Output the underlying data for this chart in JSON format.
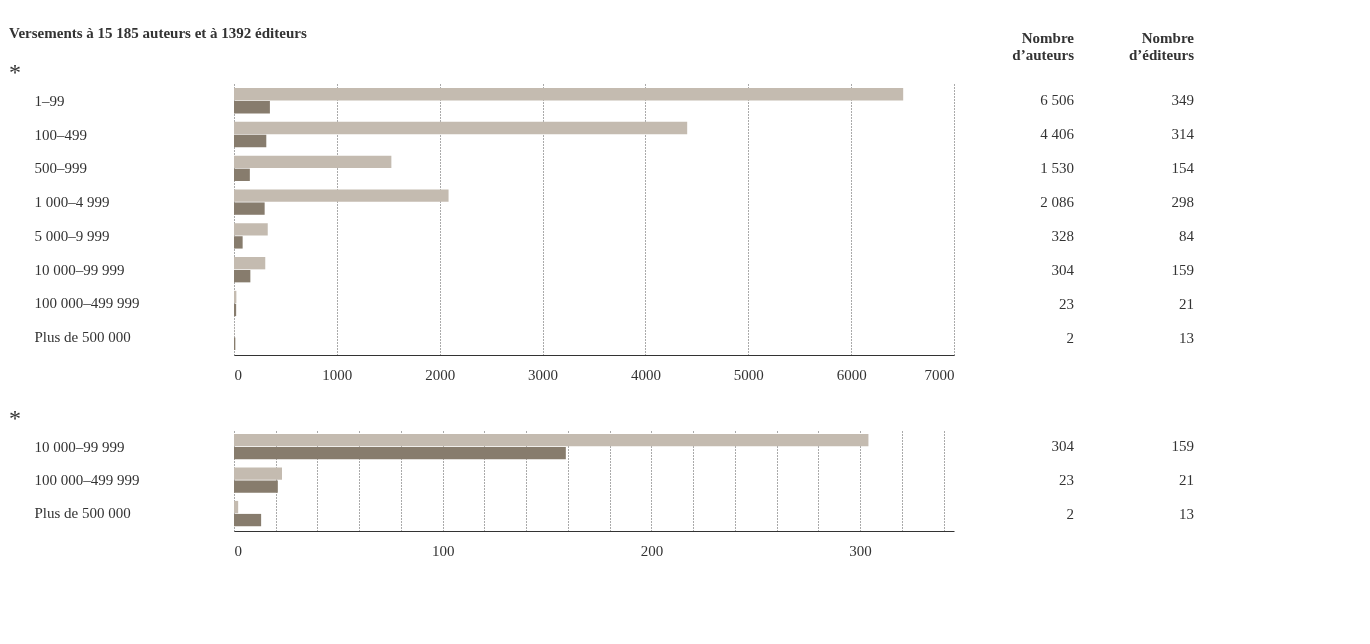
{
  "chart_data": [
    {
      "type": "bar",
      "orientation": "horizontal",
      "title": "Versements à 15 185 auteurs et à 1392 éditeurs",
      "categories": [
        "1–99",
        "100–499",
        "500–999",
        "1 000–4 999",
        "5 000–9 999",
        "10 000–99 999",
        "100 000–499 999",
        "Plus de 500 000"
      ],
      "series": [
        {
          "name": "Nombre d’auteurs",
          "color": "#c4bbb0",
          "values": [
            6506,
            4406,
            1530,
            2086,
            328,
            304,
            23,
            2
          ],
          "value_labels": [
            "6 506",
            "4 406",
            "1 530",
            "2 086",
            "328",
            "304",
            "23",
            "2"
          ]
        },
        {
          "name": "Nombre d’éditeurs",
          "color": "#877c6d",
          "values": [
            349,
            314,
            154,
            298,
            84,
            159,
            21,
            13
          ],
          "value_labels": [
            "349",
            "314",
            "154",
            "298",
            "84",
            "159",
            "21",
            "13"
          ]
        }
      ],
      "xlim": [
        0,
        7000
      ],
      "xticks": [
        0,
        1000,
        2000,
        3000,
        4000,
        5000,
        6000,
        7000
      ],
      "grid": "x",
      "annotations": [
        "*"
      ]
    },
    {
      "type": "bar",
      "orientation": "horizontal",
      "categories": [
        "10 000–99 999",
        "100 000–499 999",
        "Plus de 500 000"
      ],
      "series": [
        {
          "color": "#c4bbb0",
          "values": [
            304,
            23,
            2
          ],
          "value_labels": [
            "304",
            "23",
            "2"
          ]
        },
        {
          "color": "#877c6d",
          "values": [
            159,
            21,
            13
          ],
          "value_labels": [
            "159",
            "21",
            "13"
          ]
        }
      ],
      "xlim": [
        0,
        345
      ],
      "xticks": [
        0,
        {
          "value": 20,
          "label": null
        },
        {
          "value": 40,
          "label": null
        },
        {
          "value": 60,
          "label": null
        },
        {
          "value": 80,
          "label": null
        },
        100,
        {
          "value": 120,
          "label": null
        },
        {
          "value": 140,
          "label": null
        },
        {
          "value": 160,
          "label": null
        },
        {
          "value": 180,
          "label": null
        },
        200,
        {
          "value": 220,
          "label": null
        },
        {
          "value": 240,
          "label": null
        },
        {
          "value": 260,
          "label": null
        },
        {
          "value": 280,
          "label": null
        },
        300,
        {
          "value": 320,
          "label": null
        },
        {
          "value": 340,
          "label": null
        }
      ],
      "grid": "x",
      "annotations": [
        "*"
      ]
    }
  ]
}
